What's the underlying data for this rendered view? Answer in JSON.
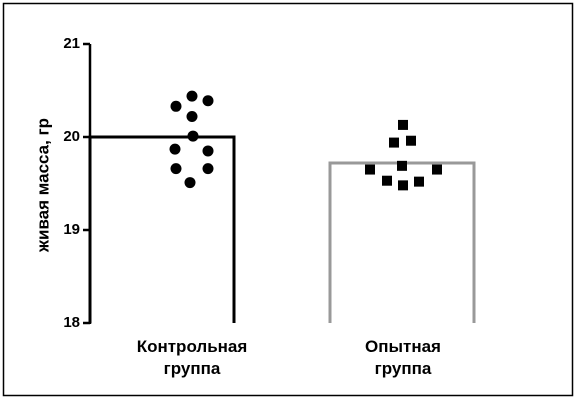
{
  "chart_data": {
    "type": "bar",
    "y_label": "живая масса, гр",
    "categories": [
      "Контрольная группа",
      "Опытная группа"
    ],
    "values": [
      20.0,
      19.72
    ],
    "colors": [
      "#000000",
      "#999999"
    ],
    "markers": [
      "circle",
      "square"
    ],
    "points": [
      [
        20.33,
        20.44,
        20.39,
        20.22,
        20.01,
        19.87,
        19.85,
        19.66,
        19.66,
        19.51
      ],
      [
        20.13,
        19.94,
        19.96,
        19.69,
        19.65,
        19.53,
        19.48,
        19.52,
        19.65
      ]
    ],
    "ylim": [
      18,
      21
    ],
    "yticks": [
      18,
      19,
      20,
      21
    ]
  }
}
